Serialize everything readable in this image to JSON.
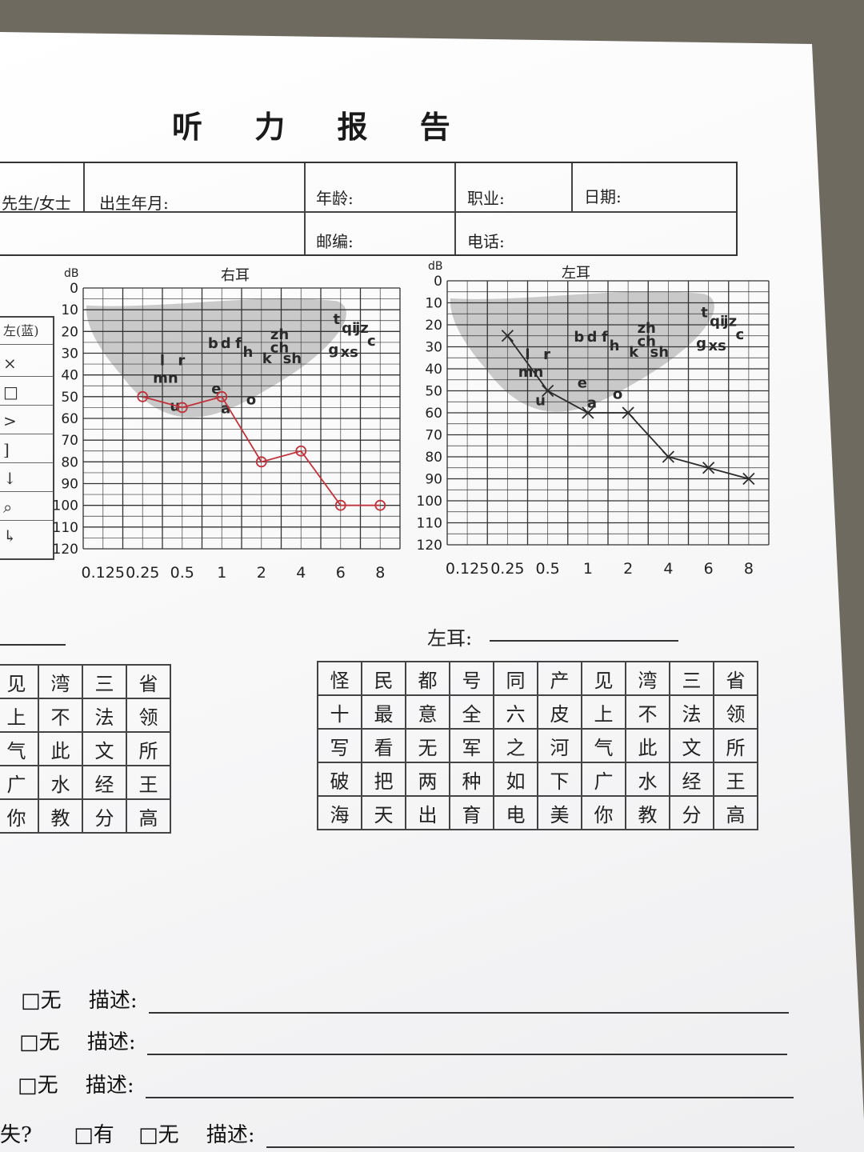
{
  "page": {
    "title": "听 力 报 告"
  },
  "info": {
    "gender_label": "先生/女士",
    "birth_label": "出生年月:",
    "age_label": "年龄:",
    "job_label": "职业:",
    "date_label": "日期:",
    "zip_label": "邮编:",
    "phone_label": "电话:"
  },
  "legend": {
    "header": "左(蓝)",
    "symbols": [
      "×",
      "□",
      ">",
      "]",
      "↓",
      "⌕",
      "↳"
    ]
  },
  "colors": {
    "right_ear": "#c0333c",
    "left_ear": "#2a2a2a",
    "speech_banana": "#bdbdbd"
  },
  "chart_data": [
    {
      "type": "line",
      "title": "右耳",
      "ylabel": "dB",
      "x_ticks": [
        "0.125",
        "0.25",
        "0.5",
        "1",
        "2",
        "4",
        "6",
        "8"
      ],
      "y_ticks": [
        0,
        10,
        20,
        30,
        40,
        50,
        60,
        70,
        80,
        90,
        100,
        110,
        120
      ],
      "ylim": [
        0,
        120
      ],
      "y_inverted": true,
      "grid": true,
      "series": [
        {
          "color": "#c0333c",
          "marker": "o",
          "x": [
            0.25,
            0.5,
            1,
            2,
            4,
            6,
            8
          ],
          "y": [
            50,
            55,
            50,
            80,
            75,
            100,
            100
          ]
        }
      ],
      "speech_sounds": [
        "t",
        "qi",
        "jz",
        "c",
        "g",
        "xs",
        "zh",
        "ch",
        "sh",
        "b",
        "d",
        "f",
        "h",
        "k",
        "l",
        "r",
        "mn",
        "e",
        "o",
        "u",
        "a"
      ]
    },
    {
      "type": "line",
      "title": "左耳",
      "ylabel": "dB",
      "x_ticks": [
        "0.125",
        "0.25",
        "0.5",
        "1",
        "2",
        "4",
        "6",
        "8"
      ],
      "y_ticks": [
        0,
        10,
        20,
        30,
        40,
        50,
        60,
        70,
        80,
        90,
        100,
        110,
        120
      ],
      "ylim": [
        0,
        120
      ],
      "y_inverted": true,
      "grid": true,
      "series": [
        {
          "color": "#2a2a2a",
          "marker": "x",
          "x": [
            0.25,
            0.5,
            1,
            2,
            4,
            6,
            8
          ],
          "y": [
            25,
            50,
            60,
            60,
            80,
            85,
            90
          ]
        }
      ],
      "speech_sounds": [
        "t",
        "qi",
        "jz",
        "c",
        "g",
        "xs",
        "zh",
        "ch",
        "sh",
        "b",
        "d",
        "f",
        "h",
        "k",
        "l",
        "r",
        "mn",
        "e",
        "o",
        "u",
        "a"
      ]
    }
  ],
  "left_ear_label": "左耳:",
  "word_table_right": [
    [
      "见",
      "湾",
      "三",
      "省"
    ],
    [
      "上",
      "不",
      "法",
      "领"
    ],
    [
      "气",
      "此",
      "文",
      "所"
    ],
    [
      "广",
      "水",
      "经",
      "王"
    ],
    [
      "你",
      "教",
      "分",
      "高"
    ]
  ],
  "word_table_left": [
    [
      "怪",
      "民",
      "都",
      "号",
      "同",
      "产",
      "见",
      "湾",
      "三",
      "省"
    ],
    [
      "十",
      "最",
      "意",
      "全",
      "六",
      "皮",
      "上",
      "不",
      "法",
      "领"
    ],
    [
      "写",
      "看",
      "无",
      "军",
      "之",
      "河",
      "气",
      "此",
      "文",
      "所"
    ],
    [
      "破",
      "把",
      "两",
      "种",
      "如",
      "下",
      "广",
      "水",
      "经",
      "王"
    ],
    [
      "海",
      "天",
      "出",
      "育",
      "电",
      "美",
      "你",
      "教",
      "分",
      "高"
    ]
  ],
  "questions": [
    {
      "none": "□无",
      "desc": "描述:"
    },
    {
      "none": "□无",
      "desc": "描述:"
    },
    {
      "none": "□无",
      "desc": "描述:"
    },
    {
      "prefix": "失?",
      "yes": "□有",
      "none": "□无",
      "desc": "描述:"
    }
  ]
}
